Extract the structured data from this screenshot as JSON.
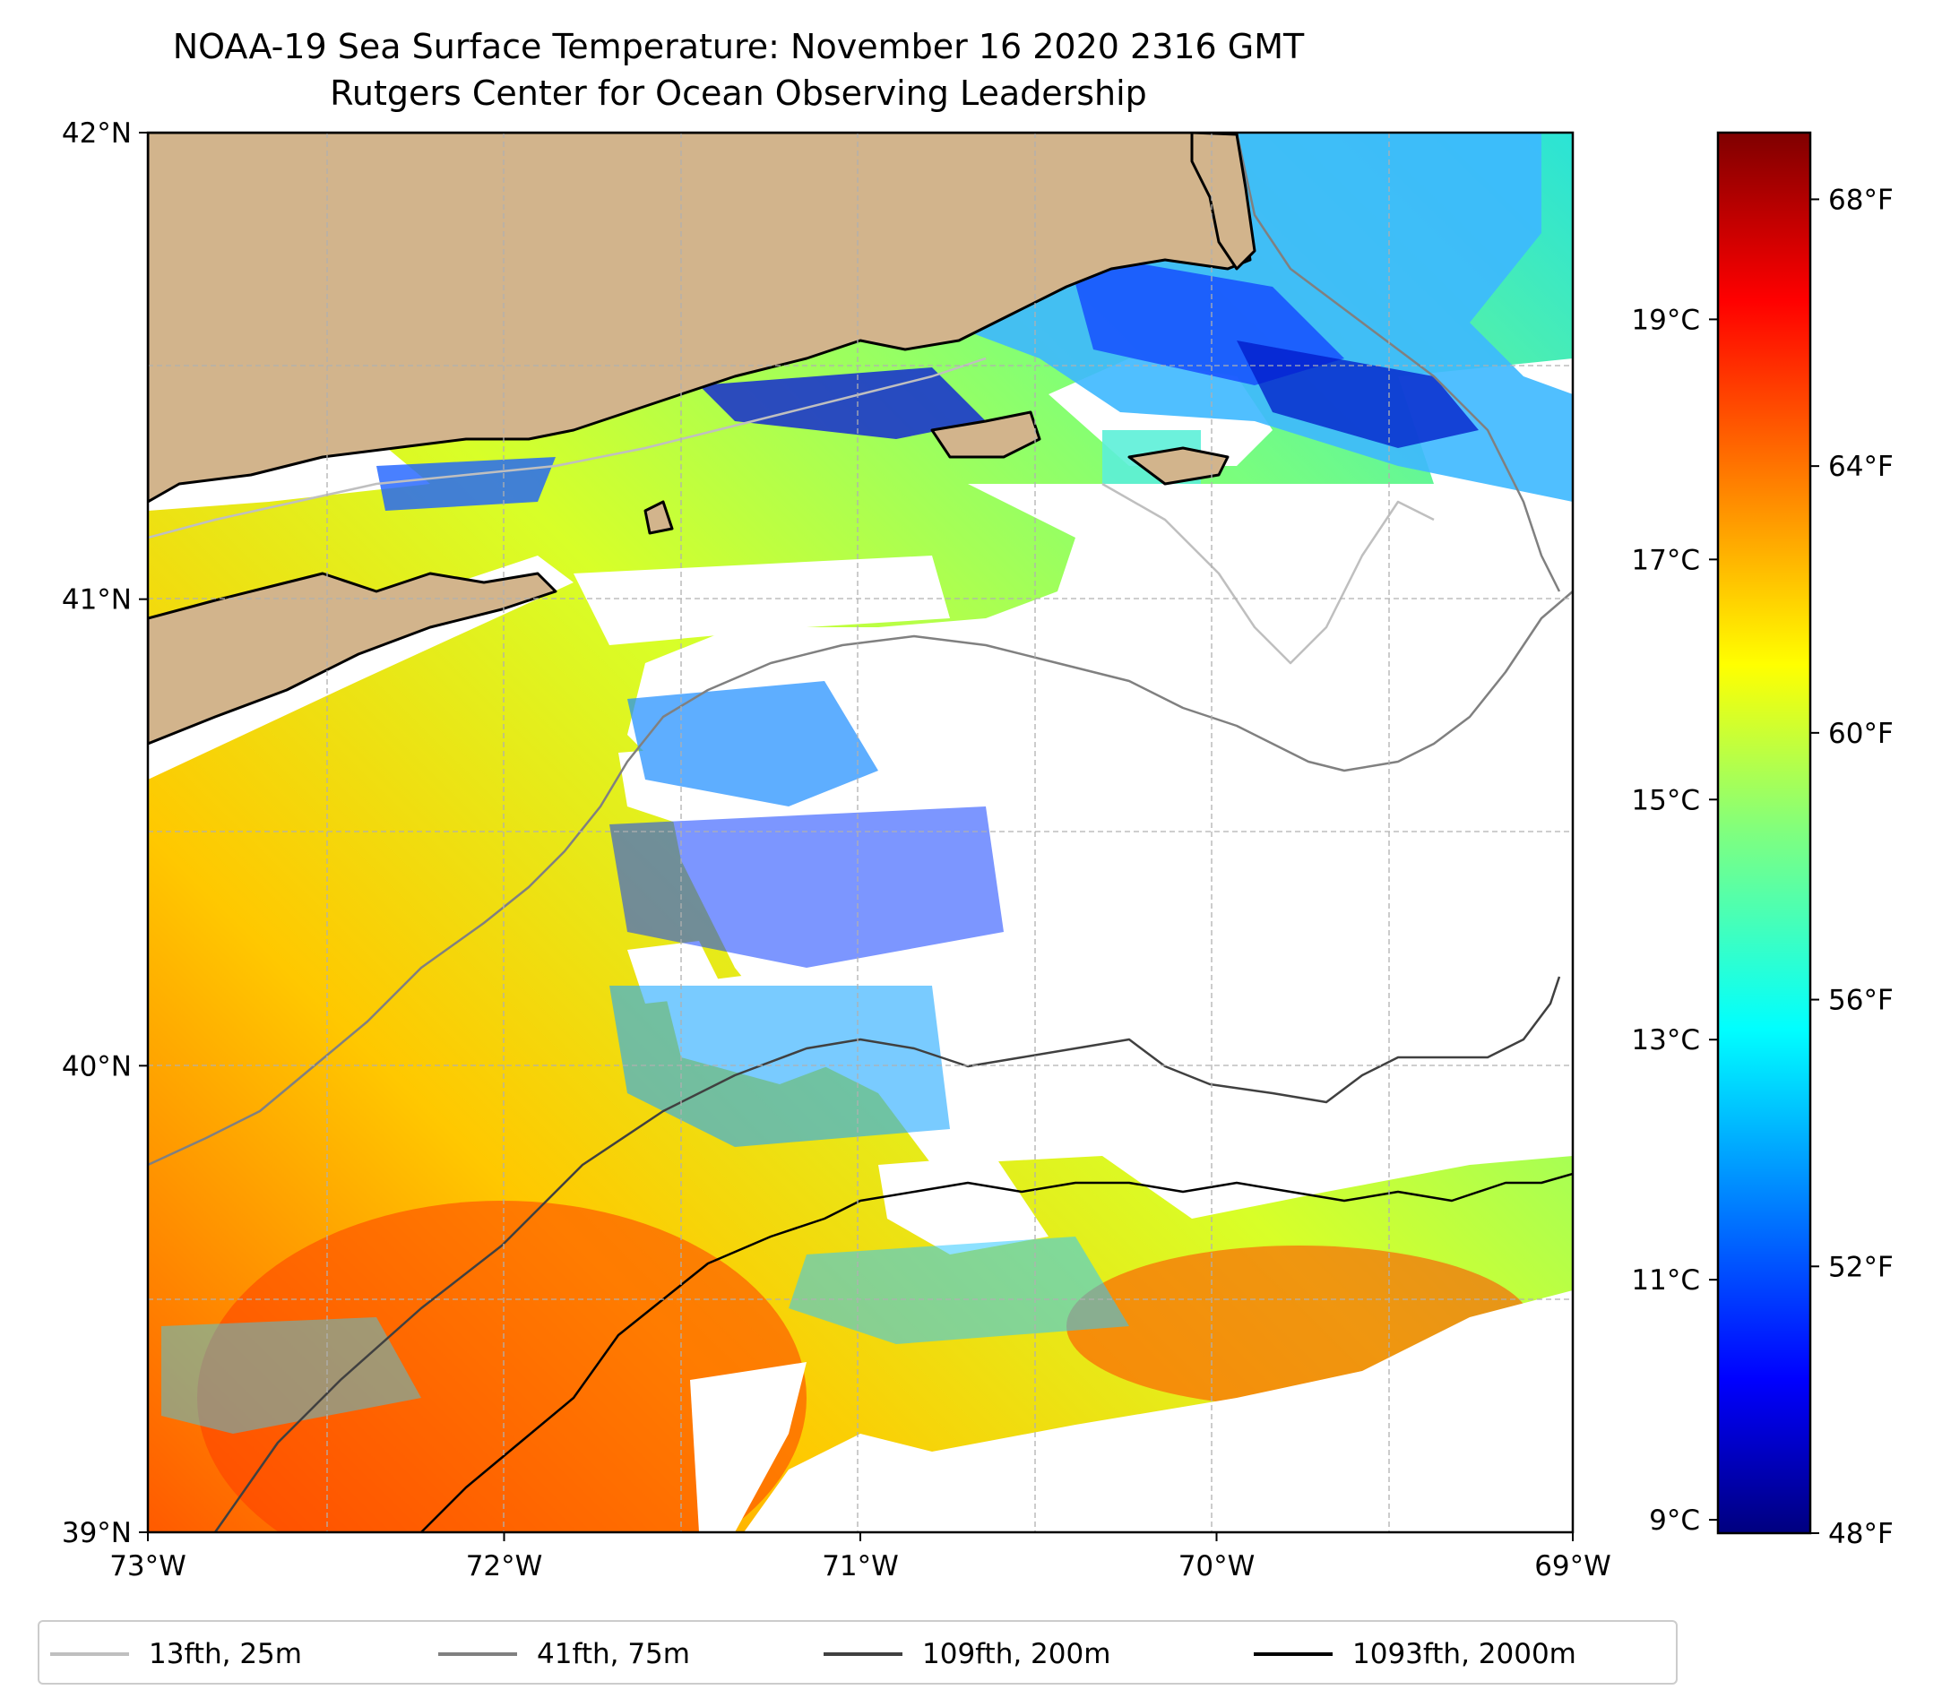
{
  "title": {
    "line1": "NOAA-19 Sea Surface Temperature: November 16 2020 2316 GMT",
    "line2": "Rutgers Center for Ocean Observing Leadership"
  },
  "map": {
    "lon_range": [
      -73,
      -69
    ],
    "lat_range": [
      39,
      42
    ],
    "x_ticks": [
      {
        "lon": -73,
        "label": "73°W"
      },
      {
        "lon": -72,
        "label": "72°W"
      },
      {
        "lon": -71,
        "label": "71°W"
      },
      {
        "lon": -70,
        "label": "70°W"
      },
      {
        "lon": -69,
        "label": "69°W"
      }
    ],
    "y_ticks": [
      {
        "lat": 39,
        "label": "39°N"
      },
      {
        "lat": 40,
        "label": "40°N"
      },
      {
        "lat": 41,
        "label": "41°N"
      },
      {
        "lat": 42,
        "label": "42°N"
      }
    ],
    "gridlines": true,
    "land_color": "#d2b48c",
    "missing_data_color": "#ffffff"
  },
  "colorbar": {
    "colormap": "jet",
    "range_f": [
      48,
      69
    ],
    "f_ticks": [
      {
        "value": 48,
        "label": "48°F"
      },
      {
        "value": 52,
        "label": "52°F"
      },
      {
        "value": 56,
        "label": "56°F"
      },
      {
        "value": 60,
        "label": "60°F"
      },
      {
        "value": 64,
        "label": "64°F"
      },
      {
        "value": 68,
        "label": "68°F"
      }
    ],
    "c_ticks": [
      {
        "value": 9,
        "label": "9°C"
      },
      {
        "value": 11,
        "label": "11°C"
      },
      {
        "value": 13,
        "label": "13°C"
      },
      {
        "value": 15,
        "label": "15°C"
      },
      {
        "value": 17,
        "label": "17°C"
      },
      {
        "value": 19,
        "label": "19°C"
      }
    ]
  },
  "legend": {
    "placement": "bottom",
    "items": [
      {
        "label": "13fth, 25m",
        "color": "#bfbfbf"
      },
      {
        "label": "41fth, 75m",
        "color": "#808080"
      },
      {
        "label": "109fth, 200m",
        "color": "#404040"
      },
      {
        "label": "1093fth, 2000m",
        "color": "#000000"
      }
    ]
  }
}
